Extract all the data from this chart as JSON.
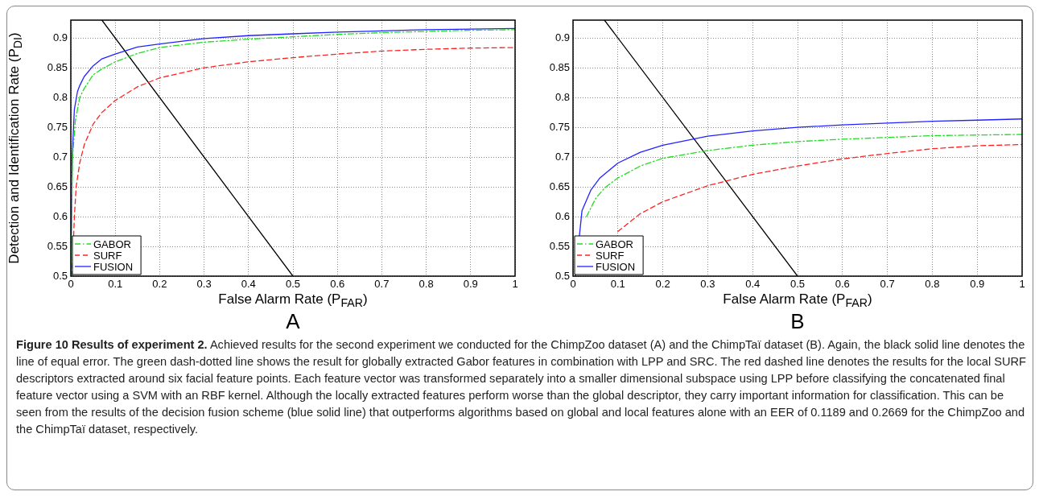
{
  "chart_data": [
    {
      "type": "line",
      "xlabel": "False Alarm Rate (P$_{FAR}$)",
      "ylabel": "Detection and Identification Rate (P$_{DI}$)",
      "xlim": [
        0,
        1
      ],
      "ylim": [
        0.5,
        0.93
      ],
      "xticks": [
        0,
        0.1,
        0.2,
        0.3,
        0.4,
        0.5,
        0.6,
        0.7,
        0.8,
        0.9,
        1
      ],
      "yticks": [
        0.5,
        0.55,
        0.6,
        0.65,
        0.7,
        0.75,
        0.8,
        0.85,
        0.9
      ],
      "grid": true,
      "legend": "bottom left",
      "marker": "none",
      "annotations": [
        "A",
        "Figure 10 Results of experiment 2.",
        "Achieved results for the second experiment we conducted for the ChimpZoo dataset (A) and the ChimpTaï dataset (B). Again, the black solid line denotes the line of equal error. The green dash-dotted line shows the result for globally extracted Gabor features in combination with LPP and SRC. The red dashed line denotes the results for the local SURF descriptors extracted around six facial feature points. Each feature vector was transformed separately into a smaller dimensional subspace using LPP before classifying the concatenated final feature vector using a SVM with an RBF kernel. Although the locally extracted features perform worse than the global descriptor, they carry important information for classification. This can be seen from the results of the decision fusion scheme (blue solid line) that outperforms algorithms based on global and local features alone with an EER of 0.1189 and 0.2669 for the ChimpZoo and the ChimpTaï dataset, respectively."
      ],
      "series": [
        {
          "name": "GABOR",
          "color": "#22dd22",
          "line_style": "dashdot",
          "x": [
            0,
            0.004,
            0.01,
            0.02,
            0.03,
            0.05,
            0.07,
            0.1,
            0.15,
            0.2,
            0.3,
            0.4,
            0.5,
            0.6,
            0.7,
            0.8,
            0.9,
            1
          ],
          "values": [
            0.5,
            0.7,
            0.76,
            0.8,
            0.815,
            0.838,
            0.848,
            0.86,
            0.874,
            0.884,
            0.893,
            0.898,
            0.902,
            0.906,
            0.909,
            0.911,
            0.913,
            0.914
          ]
        },
        {
          "name": "SURF",
          "color": "#ff2222",
          "line_style": "dashed",
          "x": [
            0.003,
            0.008,
            0.012,
            0.02,
            0.03,
            0.05,
            0.07,
            0.1,
            0.15,
            0.2,
            0.3,
            0.4,
            0.5,
            0.6,
            0.7,
            0.8,
            0.9,
            1
          ],
          "values": [
            0.5,
            0.6,
            0.65,
            0.69,
            0.72,
            0.755,
            0.775,
            0.795,
            0.818,
            0.833,
            0.85,
            0.86,
            0.867,
            0.873,
            0.878,
            0.881,
            0.883,
            0.884
          ]
        },
        {
          "name": "FUSION",
          "color": "#2222ff",
          "line_style": "solid",
          "x": [
            0,
            0.003,
            0.008,
            0.015,
            0.02,
            0.03,
            0.05,
            0.07,
            0.1,
            0.15,
            0.2,
            0.3,
            0.4,
            0.5,
            0.6,
            0.7,
            0.8,
            0.9,
            1
          ],
          "values": [
            0.5,
            0.7,
            0.78,
            0.81,
            0.82,
            0.835,
            0.853,
            0.865,
            0.873,
            0.885,
            0.89,
            0.899,
            0.904,
            0.907,
            0.91,
            0.912,
            0.914,
            0.915,
            0.916
          ]
        },
        {
          "color": "#000000",
          "line_style": "solid",
          "x": [
            0.07,
            0.5
          ],
          "values": [
            0.93,
            0.5
          ]
        }
      ]
    },
    {
      "type": "line",
      "xlabel": "False Alarm Rate (P$_{FAR}$)",
      "xlim": [
        0,
        1
      ],
      "ylim": [
        0.5,
        0.93
      ],
      "xticks": [
        0,
        0.1,
        0.2,
        0.3,
        0.4,
        0.5,
        0.6,
        0.7,
        0.8,
        0.9,
        1
      ],
      "yticks": [
        0.5,
        0.55,
        0.6,
        0.65,
        0.7,
        0.75,
        0.8,
        0.85,
        0.9
      ],
      "grid": true,
      "legend": "bottom left",
      "marker": "none",
      "annotations": [
        "B"
      ],
      "series": [
        {
          "name": "GABOR",
          "color": "#22dd22",
          "line_style": "dashdot",
          "x": [
            0.03,
            0.05,
            0.07,
            0.1,
            0.15,
            0.2,
            0.3,
            0.4,
            0.5,
            0.6,
            0.7,
            0.8,
            0.9,
            1
          ],
          "values": [
            0.6,
            0.63,
            0.648,
            0.665,
            0.685,
            0.698,
            0.711,
            0.72,
            0.726,
            0.73,
            0.733,
            0.736,
            0.737,
            0.738
          ]
        },
        {
          "name": "SURF",
          "color": "#ff2222",
          "line_style": "dashed",
          "x": [
            0.1,
            0.15,
            0.2,
            0.3,
            0.4,
            0.5,
            0.6,
            0.7,
            0.8,
            0.9,
            1
          ],
          "values": [
            0.575,
            0.605,
            0.625,
            0.652,
            0.671,
            0.685,
            0.697,
            0.706,
            0.714,
            0.719,
            0.721
          ]
        },
        {
          "name": "FUSION",
          "color": "#2222ff",
          "line_style": "solid",
          "x": [
            0.005,
            0.02,
            0.04,
            0.06,
            0.1,
            0.15,
            0.2,
            0.3,
            0.4,
            0.5,
            0.6,
            0.7,
            0.8,
            0.9,
            1
          ],
          "values": [
            0.5,
            0.61,
            0.645,
            0.665,
            0.69,
            0.708,
            0.72,
            0.735,
            0.744,
            0.75,
            0.754,
            0.757,
            0.76,
            0.762,
            0.764
          ]
        },
        {
          "color": "#000000",
          "line_style": "solid",
          "x": [
            0.07,
            0.5
          ],
          "values": [
            0.93,
            0.5
          ]
        }
      ]
    }
  ]
}
